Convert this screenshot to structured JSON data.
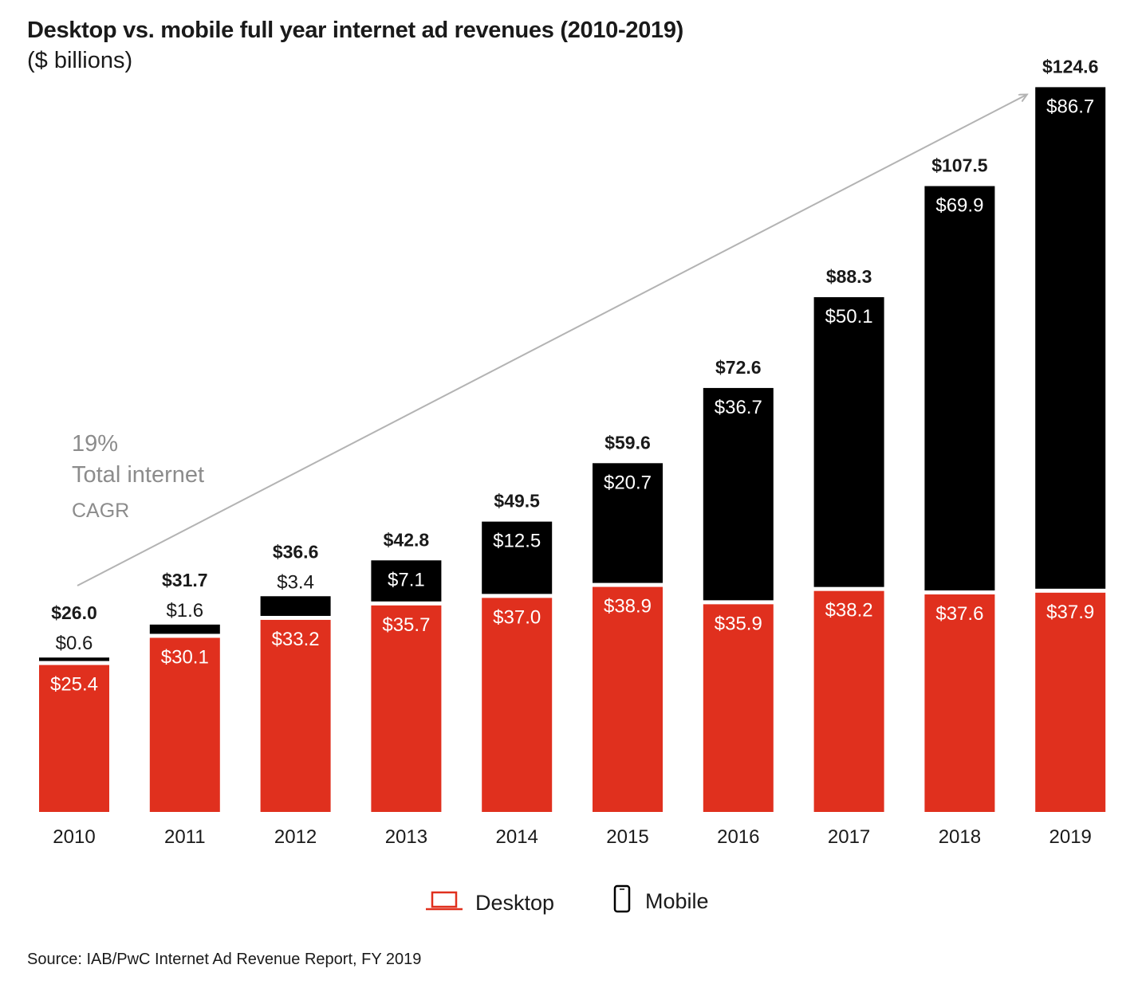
{
  "title": "Desktop vs. mobile full year internet ad revenues (2010-2019)",
  "subtitle": "($ billions)",
  "source": "Source: IAB/PwC Internet Ad Revenue Report, FY 2019",
  "annotation": {
    "pct": "19%",
    "line1": "Total internet",
    "line2": "CAGR"
  },
  "colors": {
    "desktop": "#e0301e",
    "mobile": "#000000",
    "arrow": "#b3b3b3",
    "annotation": "#8c8c8c"
  },
  "icons": {
    "desktop": "laptop-icon",
    "mobile": "phone-icon"
  },
  "chart_data": {
    "type": "bar",
    "stacked": true,
    "categories": [
      "2010",
      "2011",
      "2012",
      "2013",
      "2014",
      "2015",
      "2016",
      "2017",
      "2018",
      "2019"
    ],
    "series": [
      {
        "name": "Desktop",
        "values": [
          25.4,
          30.1,
          33.2,
          35.7,
          37.0,
          38.9,
          35.9,
          38.2,
          37.6,
          37.9
        ],
        "labels": [
          "$25.4",
          "$30.1",
          "$33.2",
          "$35.7",
          "$37.0",
          "$38.9",
          "$35.9",
          "$38.2",
          "$37.6",
          "$37.9"
        ]
      },
      {
        "name": "Mobile",
        "values": [
          0.6,
          1.6,
          3.4,
          7.1,
          12.5,
          20.7,
          36.7,
          50.1,
          69.9,
          86.7
        ],
        "labels": [
          "$0.6",
          "$1.6",
          "$3.4",
          "$7.1",
          "$12.5",
          "$20.7",
          "$36.7",
          "$50.1",
          "$69.9",
          "$86.7"
        ]
      }
    ],
    "totals": [
      26.0,
      31.7,
      36.6,
      42.8,
      49.5,
      59.6,
      72.6,
      88.3,
      107.5,
      124.6
    ],
    "total_labels": [
      "$26.0",
      "$31.7",
      "$36.6",
      "$42.8",
      "$49.5",
      "$59.6",
      "$72.6",
      "$88.3",
      "$107.5",
      "$124.6"
    ],
    "legend": "bottom-center",
    "grid": false
  }
}
